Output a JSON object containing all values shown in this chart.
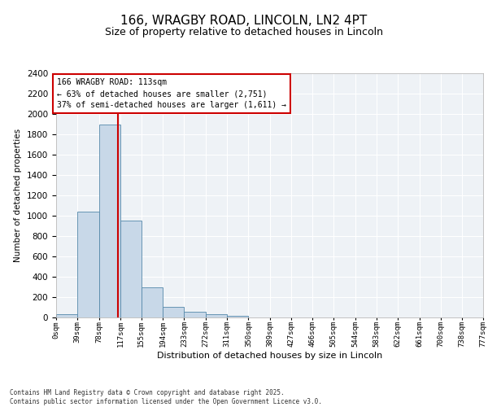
{
  "title": "166, WRAGBY ROAD, LINCOLN, LN2 4PT",
  "subtitle": "Size of property relative to detached houses in Lincoln",
  "xlabel": "Distribution of detached houses by size in Lincoln",
  "ylabel": "Number of detached properties",
  "bin_edges": [
    0,
    39,
    78,
    117,
    155,
    194,
    233,
    272,
    311,
    350,
    389,
    427,
    466,
    505,
    544,
    583,
    622,
    661,
    700,
    738,
    777
  ],
  "bar_heights": [
    30,
    1040,
    1900,
    950,
    300,
    105,
    55,
    30,
    15,
    0,
    0,
    0,
    0,
    0,
    0,
    0,
    0,
    0,
    0,
    0
  ],
  "bar_color": "#c8d8e8",
  "bar_edge_color": "#5588aa",
  "property_size": 113,
  "property_line_color": "#cc0000",
  "annotation_text": "166 WRAGBY ROAD: 113sqm\n← 63% of detached houses are smaller (2,751)\n37% of semi-detached houses are larger (1,611) →",
  "annotation_box_color": "#cc0000",
  "ylim": [
    0,
    2400
  ],
  "yticks": [
    0,
    200,
    400,
    600,
    800,
    1000,
    1200,
    1400,
    1600,
    1800,
    2000,
    2200,
    2400
  ],
  "bg_color": "#eef2f6",
  "grid_color": "#ffffff",
  "footer_line1": "Contains HM Land Registry data © Crown copyright and database right 2025.",
  "footer_line2": "Contains public sector information licensed under the Open Government Licence v3.0."
}
